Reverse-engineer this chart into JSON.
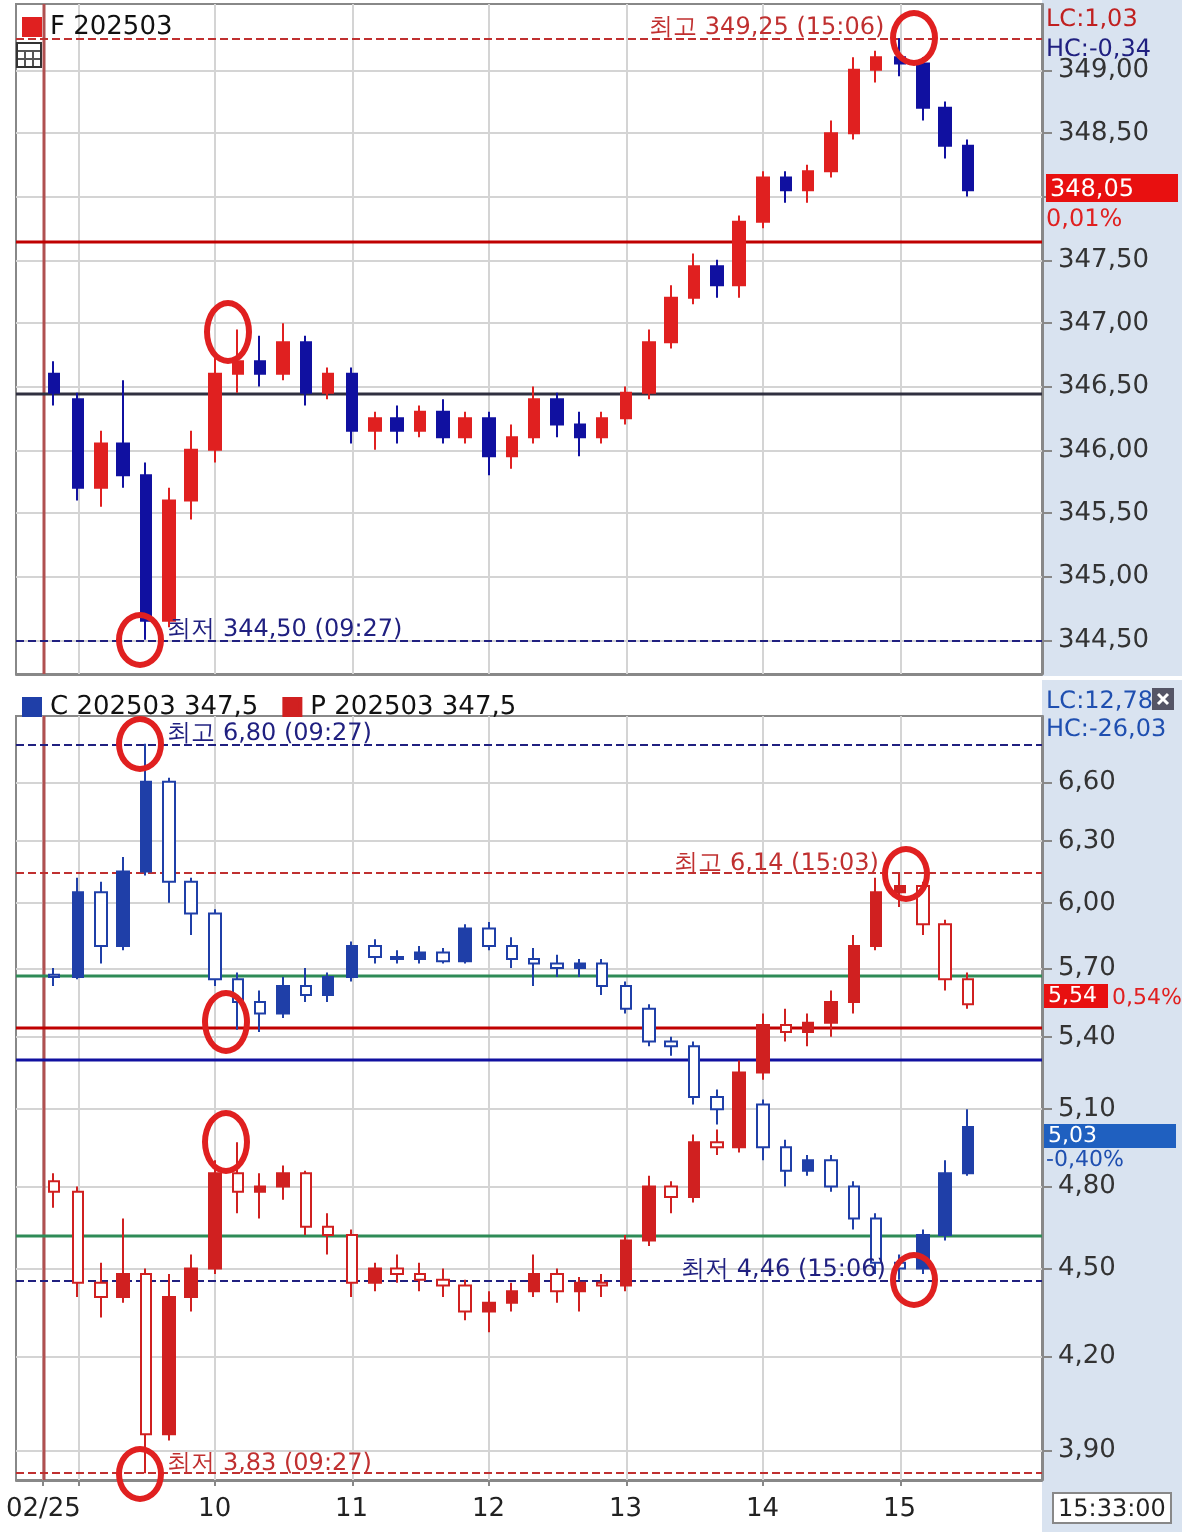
{
  "chart_data": [
    {
      "type": "candlestick",
      "x": [
        8.83,
        9,
        9.17,
        9.33,
        9.5,
        9.67,
        9.83,
        10,
        10.17,
        10.33,
        10.5,
        10.67,
        10.83,
        11,
        11.17,
        11.33,
        11.5,
        11.67,
        11.83,
        12,
        12.17,
        12.33,
        12.5,
        12.67,
        12.83,
        13,
        13.17,
        13.33,
        13.5,
        13.67,
        13.83,
        14,
        14.17,
        14.33,
        14.5,
        14.67,
        14.83,
        15,
        15.17,
        15.33,
        15.5
      ],
      "series": [
        {
          "name": "F 202503",
          "color": "#e02020",
          "colors": [
            "#1010a0",
            "#1010a0",
            "#e02020",
            "#1010a0",
            "#1010a0",
            "#e02020",
            "#e02020",
            "#e02020",
            "#e02020",
            "#1010a0",
            "#e02020",
            "#1010a0",
            "#e02020",
            "#1010a0",
            "#e02020",
            "#1010a0",
            "#e02020",
            "#1010a0",
            "#e02020",
            "#1010a0",
            "#e02020",
            "#e02020",
            "#1010a0",
            "#1010a0",
            "#e02020",
            "#e02020",
            "#e02020",
            "#e02020",
            "#e02020",
            "#1010a0",
            "#e02020",
            "#e02020",
            "#1010a0",
            "#e02020",
            "#e02020",
            "#e02020",
            "#e02020",
            "#1010a0",
            "#1010a0",
            "#1010a0",
            "#1010a0"
          ],
          "ohlc": [
            [
              346.6,
              346.7,
              346.35,
              346.45
            ],
            [
              346.4,
              346.45,
              345.6,
              345.7
            ],
            [
              345.7,
              346.15,
              345.55,
              346.05
            ],
            [
              346.05,
              346.55,
              345.7,
              345.8
            ],
            [
              345.8,
              345.9,
              344.5,
              344.65
            ],
            [
              344.65,
              345.7,
              344.6,
              345.6
            ],
            [
              345.6,
              346.15,
              345.45,
              346.0
            ],
            [
              346.0,
              346.75,
              345.9,
              346.6
            ],
            [
              346.6,
              346.95,
              346.45,
              346.7
            ],
            [
              346.7,
              346.9,
              346.5,
              346.6
            ],
            [
              346.6,
              347.0,
              346.55,
              346.85
            ],
            [
              346.85,
              346.9,
              346.35,
              346.45
            ],
            [
              346.45,
              346.65,
              346.4,
              346.6
            ],
            [
              346.6,
              346.65,
              346.05,
              346.15
            ],
            [
              346.15,
              346.3,
              346.0,
              346.25
            ],
            [
              346.25,
              346.35,
              346.05,
              346.15
            ],
            [
              346.15,
              346.35,
              346.1,
              346.3
            ],
            [
              346.3,
              346.4,
              346.05,
              346.1
            ],
            [
              346.1,
              346.3,
              346.05,
              346.25
            ],
            [
              346.25,
              346.3,
              345.8,
              345.95
            ],
            [
              345.95,
              346.2,
              345.85,
              346.1
            ],
            [
              346.1,
              346.5,
              346.05,
              346.4
            ],
            [
              346.4,
              346.45,
              346.1,
              346.2
            ],
            [
              346.2,
              346.3,
              345.95,
              346.1
            ],
            [
              346.1,
              346.3,
              346.05,
              346.25
            ],
            [
              346.25,
              346.5,
              346.2,
              346.45
            ],
            [
              346.45,
              346.95,
              346.4,
              346.85
            ],
            [
              346.85,
              347.3,
              346.8,
              347.2
            ],
            [
              347.2,
              347.55,
              347.15,
              347.45
            ],
            [
              347.45,
              347.5,
              347.2,
              347.3
            ],
            [
              347.3,
              347.85,
              347.2,
              347.8
            ],
            [
              347.8,
              348.2,
              347.75,
              348.15
            ],
            [
              348.15,
              348.2,
              347.95,
              348.05
            ],
            [
              348.05,
              348.25,
              347.95,
              348.2
            ],
            [
              348.2,
              348.6,
              348.15,
              348.5
            ],
            [
              348.5,
              349.1,
              348.45,
              349.0
            ],
            [
              349.0,
              349.15,
              348.9,
              349.1
            ],
            [
              349.1,
              349.25,
              348.95,
              349.05
            ],
            [
              349.05,
              349.1,
              348.6,
              348.7
            ],
            [
              348.7,
              348.75,
              348.3,
              348.4
            ],
            [
              348.4,
              348.45,
              348.0,
              348.05
            ]
          ]
        }
      ],
      "xlim": [
        8.55,
        16.04
      ],
      "xticks": [
        9,
        10,
        11,
        12,
        13,
        14,
        15
      ],
      "ylim": [
        344.23,
        349.52
      ],
      "yticks": [
        {
          "value": 344.5,
          "label": "344,50"
        },
        {
          "value": 345,
          "label": "345,00"
        },
        {
          "value": 345.5,
          "label": "345,50"
        },
        {
          "value": 346,
          "label": "346,00"
        },
        {
          "value": 346.5,
          "label": "346,50"
        },
        {
          "value": 347,
          "label": "347,00"
        },
        {
          "value": 347.5,
          "label": "347,50"
        },
        {
          "value": 348,
          "label": null
        },
        {
          "value": 348.5,
          "label": "348,50"
        },
        {
          "value": 349,
          "label": "349,00"
        }
      ],
      "tick_labels": "y",
      "grid": true,
      "legend": "top left",
      "ref_lines": [
        {
          "axis": "x",
          "value": 8.75,
          "label": null,
          "color": "#b05050",
          "line_style": "solid"
        },
        {
          "axis": "y",
          "value": 349.25,
          "label": null,
          "color": "#c03030",
          "line_style": "dashed"
        },
        {
          "axis": "y",
          "value": 344.5,
          "label": null,
          "color": "#202080",
          "line_style": "dashed"
        },
        {
          "axis": "y",
          "value": 347.65,
          "label": null,
          "color": "#c00000",
          "line_style": "solid"
        },
        {
          "axis": "y",
          "value": 346.45,
          "label": null,
          "color": "#303040",
          "line_style": "solid"
        }
      ],
      "annotations": [
        {
          "text": "최고 349,25 (15:06)",
          "x": 15.1,
          "y": 349.25
        },
        {
          "text": "최저 344,50 (09:27)",
          "x": 9.45,
          "y": 344.5
        },
        "LC:1,03",
        "HC:-0,34",
        "348,05",
        "0,01%"
      ]
    },
    {
      "type": "candlestick",
      "x": [
        8.83,
        9,
        9.17,
        9.33,
        9.5,
        9.67,
        9.83,
        10,
        10.17,
        10.33,
        10.5,
        10.67,
        10.83,
        11,
        11.17,
        11.33,
        11.5,
        11.67,
        11.83,
        12,
        12.17,
        12.33,
        12.5,
        12.67,
        12.83,
        13,
        13.17,
        13.33,
        13.5,
        13.67,
        13.83,
        14,
        14.17,
        14.33,
        14.5,
        14.67,
        14.83,
        15,
        15.17,
        15.33,
        15.5
      ],
      "series": [
        {
          "name": "C 202503 347,5",
          "color": "#1f3fa8",
          "ohlc": [
            [
              5.67,
              5.7,
              5.62,
              5.66
            ],
            [
              5.66,
              6.12,
              5.65,
              6.05
            ],
            [
              6.05,
              6.1,
              5.72,
              5.8
            ],
            [
              5.8,
              6.22,
              5.78,
              6.15
            ],
            [
              6.15,
              6.8,
              6.13,
              6.6
            ],
            [
              6.6,
              6.62,
              6.0,
              6.1
            ],
            [
              6.1,
              6.12,
              5.85,
              5.95
            ],
            [
              5.95,
              5.97,
              5.62,
              5.65
            ],
            [
              5.65,
              5.68,
              5.43,
              5.55
            ],
            [
              5.55,
              5.6,
              5.42,
              5.5
            ],
            [
              5.5,
              5.66,
              5.48,
              5.62
            ],
            [
              5.62,
              5.7,
              5.55,
              5.58
            ],
            [
              5.58,
              5.68,
              5.55,
              5.66
            ],
            [
              5.66,
              5.82,
              5.64,
              5.8
            ],
            [
              5.8,
              5.83,
              5.72,
              5.75
            ],
            [
              5.75,
              5.78,
              5.72,
              5.74
            ],
            [
              5.74,
              5.8,
              5.72,
              5.77
            ],
            [
              5.77,
              5.79,
              5.72,
              5.73
            ],
            [
              5.73,
              5.9,
              5.72,
              5.88
            ],
            [
              5.88,
              5.91,
              5.78,
              5.8
            ],
            [
              5.8,
              5.84,
              5.7,
              5.74
            ],
            [
              5.74,
              5.79,
              5.62,
              5.72
            ],
            [
              5.72,
              5.76,
              5.66,
              5.7
            ],
            [
              5.7,
              5.74,
              5.66,
              5.72
            ],
            [
              5.72,
              5.74,
              5.58,
              5.62
            ],
            [
              5.62,
              5.64,
              5.5,
              5.52
            ],
            [
              5.52,
              5.54,
              5.36,
              5.38
            ],
            [
              5.38,
              5.4,
              5.32,
              5.36
            ],
            [
              5.36,
              5.38,
              5.12,
              5.15
            ],
            [
              5.15,
              5.18,
              5.04,
              5.1
            ],
            [
              5.1,
              5.14,
              5.06,
              5.12
            ],
            [
              5.12,
              5.14,
              4.9,
              4.95
            ],
            [
              4.95,
              4.98,
              4.8,
              4.86
            ],
            [
              4.86,
              4.92,
              4.84,
              4.9
            ],
            [
              4.9,
              4.92,
              4.78,
              4.8
            ],
            [
              4.8,
              4.82,
              4.64,
              4.68
            ],
            [
              4.68,
              4.7,
              4.48,
              4.52
            ],
            [
              4.52,
              4.55,
              4.46,
              4.5
            ],
            [
              4.5,
              4.64,
              4.48,
              4.62
            ],
            [
              4.62,
              4.9,
              4.6,
              4.85
            ],
            [
              4.85,
              5.1,
              4.84,
              5.03
            ]
          ]
        },
        {
          "name": "P 202503 347,5",
          "color": "#d02020",
          "ohlc": [
            [
              4.82,
              4.85,
              4.72,
              4.78
            ],
            [
              4.78,
              4.8,
              4.4,
              4.45
            ],
            [
              4.45,
              4.52,
              4.33,
              4.4
            ],
            [
              4.4,
              4.68,
              4.38,
              4.48
            ],
            [
              4.48,
              4.5,
              3.83,
              3.95
            ],
            [
              3.95,
              4.48,
              3.93,
              4.4
            ],
            [
              4.4,
              4.55,
              4.35,
              4.5
            ],
            [
              4.5,
              4.9,
              4.48,
              4.85
            ],
            [
              4.85,
              4.97,
              4.7,
              4.78
            ],
            [
              4.78,
              4.85,
              4.68,
              4.8
            ],
            [
              4.8,
              4.88,
              4.75,
              4.85
            ],
            [
              4.85,
              4.86,
              4.62,
              4.65
            ],
            [
              4.65,
              4.7,
              4.55,
              4.62
            ],
            [
              4.62,
              4.64,
              4.4,
              4.45
            ],
            [
              4.45,
              4.52,
              4.42,
              4.5
            ],
            [
              4.5,
              4.55,
              4.45,
              4.48
            ],
            [
              4.48,
              4.52,
              4.42,
              4.46
            ],
            [
              4.46,
              4.5,
              4.4,
              4.44
            ],
            [
              4.44,
              4.46,
              4.32,
              4.35
            ],
            [
              4.35,
              4.42,
              4.28,
              4.38
            ],
            [
              4.38,
              4.45,
              4.35,
              4.42
            ],
            [
              4.42,
              4.55,
              4.4,
              4.48
            ],
            [
              4.48,
              4.5,
              4.38,
              4.42
            ],
            [
              4.42,
              4.47,
              4.35,
              4.45
            ],
            [
              4.45,
              4.48,
              4.4,
              4.44
            ],
            [
              4.44,
              4.62,
              4.42,
              4.6
            ],
            [
              4.6,
              4.84,
              4.58,
              4.8
            ],
            [
              4.8,
              4.82,
              4.7,
              4.76
            ],
            [
              4.76,
              5.0,
              4.74,
              4.97
            ],
            [
              4.97,
              5.02,
              4.92,
              4.95
            ],
            [
              4.95,
              5.3,
              4.93,
              5.25
            ],
            [
              5.25,
              5.5,
              5.22,
              5.45
            ],
            [
              5.45,
              5.52,
              5.38,
              5.42
            ],
            [
              5.42,
              5.5,
              5.36,
              5.46
            ],
            [
              5.46,
              5.6,
              5.4,
              5.55
            ],
            [
              5.55,
              5.85,
              5.5,
              5.8
            ],
            [
              5.8,
              6.12,
              5.78,
              6.05
            ],
            [
              6.05,
              6.14,
              5.98,
              6.08
            ],
            [
              6.08,
              6.1,
              5.85,
              5.9
            ],
            [
              5.9,
              5.92,
              5.6,
              5.65
            ],
            [
              5.65,
              5.68,
              5.52,
              5.54
            ]
          ]
        }
      ],
      "xlim": [
        8.55,
        16.04
      ],
      "xticks": [
        {
          "value": 8.75,
          "label": "02/25"
        },
        {
          "value": 9,
          "label": null
        },
        10,
        11,
        12,
        13,
        14,
        15
      ],
      "ylim": [
        3.81,
        6.95
      ],
      "yticks": [
        {
          "value": 3.9,
          "label": "3,90"
        },
        {
          "value": 4.2,
          "label": "4,20"
        },
        {
          "value": 4.5,
          "label": "4,50"
        },
        {
          "value": 4.8,
          "label": "4,80"
        },
        {
          "value": 5.1,
          "label": "5,10"
        },
        {
          "value": 5.4,
          "label": "5,40"
        },
        {
          "value": 5.7,
          "label": "5,70"
        },
        {
          "value": 6.0,
          "label": "6,00"
        },
        {
          "value": 6.3,
          "label": "6,30"
        },
        {
          "value": 6.6,
          "label": "6,60"
        }
      ],
      "log": "y",
      "grid": true,
      "legend": "top left",
      "ref_lines": [
        {
          "axis": "x",
          "value": 8.75,
          "label": null,
          "color": "#b05050",
          "line_style": "solid"
        },
        {
          "axis": "y",
          "value": 6.8,
          "label": null,
          "color": "#202080",
          "line_style": "dashed"
        },
        {
          "axis": "y",
          "value": 6.14,
          "label": null,
          "color": "#c03030",
          "line_style": "dashed"
        },
        {
          "axis": "y",
          "value": 5.67,
          "label": null,
          "color": "#2e8b57",
          "line_style": "solid"
        },
        {
          "axis": "y",
          "value": 5.44,
          "label": null,
          "color": "#c00000",
          "line_style": "solid"
        },
        {
          "axis": "y",
          "value": 5.3,
          "label": null,
          "color": "#1010a0",
          "line_style": "solid"
        },
        {
          "axis": "y",
          "value": 4.62,
          "label": null,
          "color": "#2e8b57",
          "line_style": "solid"
        },
        {
          "axis": "y",
          "value": 4.46,
          "label": null,
          "color": "#202080",
          "line_style": "dashed"
        },
        {
          "axis": "y",
          "value": 3.83,
          "label": null,
          "color": "#c03030",
          "line_style": "dashed"
        }
      ],
      "annotations": [
        {
          "text": "최고 6,80 (09:27)",
          "x": 9.45,
          "y": 6.8
        },
        {
          "text": "최고 6,14 (15:03)",
          "x": 15.05,
          "y": 6.14
        },
        {
          "text": "최저 4,46 (15:06)",
          "x": 15.1,
          "y": 4.46
        },
        {
          "text": "최저 3,83 (09:27)",
          "x": 9.45,
          "y": 3.83
        },
        "LC:12,78",
        "HC:-26,03",
        "5,54",
        "0,54%",
        "5,03",
        "-0,40%",
        "15:33:00"
      ]
    }
  ]
}
